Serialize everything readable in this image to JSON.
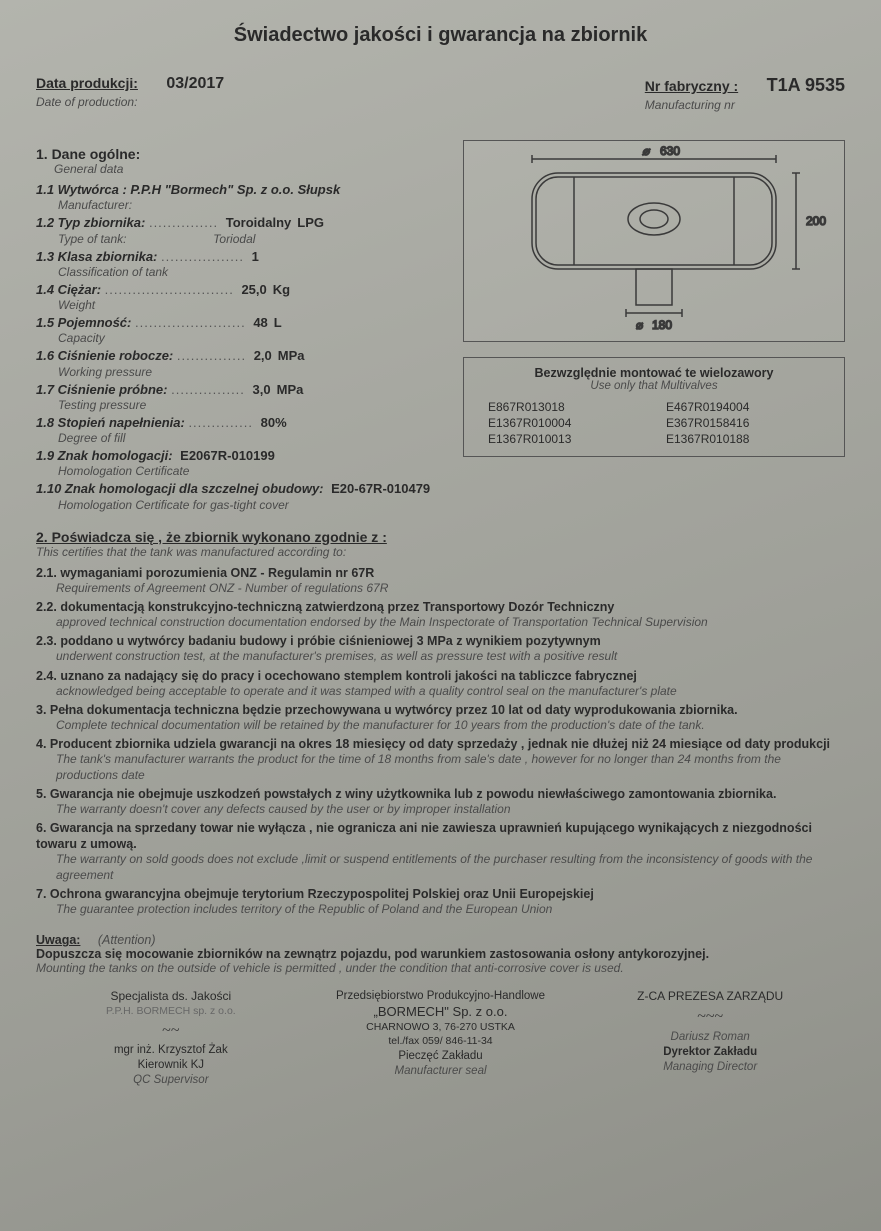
{
  "title": "Świadectwo jakości i gwarancja na zbiornik",
  "header": {
    "date_label_pl": "Data produkcji:",
    "date_label_en": "Date of production:",
    "date_value": "03/2017",
    "mfg_label_pl": "Nr fabryczny :",
    "mfg_label_en": "Manufacturing nr",
    "mfg_value": "T1A 9535"
  },
  "section1": {
    "head_pl": "1. Dane ogólne:",
    "head_en": "General data",
    "items": [
      {
        "num": "1.1",
        "pl": "Wytwórca : P.P.H \"Bormech\" Sp. z o.o. Słupsk",
        "en": "Manufacturer:",
        "dots": "",
        "val": "",
        "unit": ""
      },
      {
        "num": "1.2",
        "pl": "Typ zbiornika:",
        "en": "Type of tank:",
        "dots": "...............",
        "val": "Toroidalny",
        "unit": "LPG",
        "en2": "Toriodal"
      },
      {
        "num": "1.3",
        "pl": "Klasa zbiornika:",
        "en": "Classification of tank",
        "dots": "..................",
        "val": "1",
        "unit": ""
      },
      {
        "num": "1.4",
        "pl": "Ciężar:",
        "en": "Weight",
        "dots": "............................",
        "val": "25,0",
        "unit": "Kg"
      },
      {
        "num": "1.5",
        "pl": "Pojemność:",
        "en": "Capacity",
        "dots": "........................",
        "val": "48",
        "unit": "L"
      },
      {
        "num": "1.6",
        "pl": "Ciśnienie robocze:",
        "en": "Working pressure",
        "dots": "...............",
        "val": "2,0",
        "unit": "MPa"
      },
      {
        "num": "1.7",
        "pl": "Ciśnienie próbne:",
        "en": "Testing pressure",
        "dots": "................",
        "val": "3,0",
        "unit": "MPa"
      },
      {
        "num": "1.8",
        "pl": "Stopień napełnienia:",
        "en": "Degree of fill",
        "dots": "..............",
        "val": "80%",
        "unit": ""
      },
      {
        "num": "1.9",
        "pl": "Znak homologacji:",
        "en": "Homologation Certificate",
        "dots": "",
        "val": "E2067R-010199",
        "unit": ""
      },
      {
        "num": "1.10",
        "pl": "Znak homologacji dla szczelnej obudowy:",
        "en": "Homologation Certificate for gas-tight cover",
        "dots": "",
        "val": "E20-67R-010479",
        "unit": ""
      }
    ]
  },
  "diagram": {
    "width_mm": "630",
    "height_mm": "200",
    "hole_dia_mm": "180",
    "stroke": "#3a3a3a"
  },
  "multivalves": {
    "head_pl": "Bezwzględnie montować te wielozawory",
    "head_en": "Use only that Multivalves",
    "codes": [
      "E867R013018",
      "E467R0194004",
      "E1367R010004",
      "E367R0158416",
      "E1367R010013",
      "E1367R010188"
    ]
  },
  "section2": {
    "head_pl": "2.   Poświadcza się , że zbiornik wykonano zgodnie z :",
    "head_en": "This certifies that the tank was manufactured according to:",
    "clauses": [
      {
        "pl": "2.1. wymaganiami porozumienia ONZ - Regulamin nr 67R",
        "en": "Requirements of Agreement ONZ - Number of regulations 67R"
      },
      {
        "pl": "2.2. dokumentacją konstrukcyjno-techniczną zatwierdzoną przez Transportowy Dozór Techniczny",
        "en": "approved technical construction documentation endorsed by the Main Inspectorate of Transportation Technical Supervision"
      },
      {
        "pl": "2.3. poddano u wytwórcy badaniu budowy i próbie ciśnieniowej 3 MPa z wynikiem pozytywnym",
        "en": "underwent construction test, at the manufacturer's premises, as well as pressure test with a positive result"
      },
      {
        "pl": "2.4. uznano za nadający się do pracy i ocechowano stemplem kontroli jakości na tabliczce fabrycznej",
        "en": "acknowledged being acceptable to operate and it was stamped with a quality control seal on the manufacturer's plate"
      },
      {
        "pl": "3.  Pełna dokumentacja techniczna będzie przechowywana u wytwórcy przez 10 lat od daty wyprodukowania zbiornika.",
        "en": "Complete technical documentation will be retained by the manufacturer for 10 years from the production's date of the tank."
      },
      {
        "pl": "4. Producent zbiornika udziela gwarancji na okres 18 miesięcy od daty sprzedaży , jednak nie dłużej niż 24 miesiące od daty produkcji",
        "en": "The tank's manufacturer warrants the product for the time of 18 months from sale's date , however for no longer than 24 months from the productions date"
      },
      {
        "pl": "5. Gwarancja nie obejmuje uszkodzeń powstałych z winy użytkownika  lub z powodu niewłaściwego zamontowania zbiornika.",
        "en": "The warranty doesn't cover any defects caused by the user or by improper installation"
      },
      {
        "pl": "6. Gwarancja na sprzedany towar nie wyłącza , nie ogranicza ani nie zawiesza uprawnień kupującego wynikających z niezgodności towaru z umową.",
        "en": "The warranty on sold goods does not exclude ,limit or suspend entitlements of the purchaser resulting from the inconsistency of goods with the agreement"
      },
      {
        "pl": "7. Ochrona gwarancyjna obejmuje terytorium Rzeczypospolitej Polskiej oraz Unii Europejskiej",
        "en": "The guarantee protection includes territory of the Republic of Poland  and the European Union"
      }
    ]
  },
  "attention": {
    "label_pl": "Uwaga:",
    "label_en": "(Attention)",
    "body_pl": "Dopuszcza się mocowanie zbiorników na zewnątrz pojazdu, pod warunkiem zastosowania osłony antykorozyjnej.",
    "body_en": "Mounting the tanks on the outside of vehicle is permitted , under the condition that anti-corrosive cover is used."
  },
  "signatures": {
    "left": {
      "l1": "Specjalista ds. Jakości",
      "l2": "P.P.H. BORMECH sp. z o.o.",
      "l3": "mgr inż. Krzysztof Żak",
      "l4": "Kierownik KJ",
      "l5": "QC Supervisor"
    },
    "mid": {
      "l1": "Przedsiębiorstwo Produkcyjno-Handlowe",
      "l2": "„BORMECH\" Sp. z o.o.",
      "l3": "CHARNOWO 3, 76-270 USTKA",
      "l4": "tel./fax 059/ 846-11-34",
      "l5": "Pieczęć Zakładu",
      "l6": "Manufacturer seal"
    },
    "right": {
      "l1": "Z-CA PREZESA ZARZĄDU",
      "l2": "Dariusz Roman",
      "l3": "Dyrektor Zakładu",
      "l4": "Managing Director"
    }
  }
}
